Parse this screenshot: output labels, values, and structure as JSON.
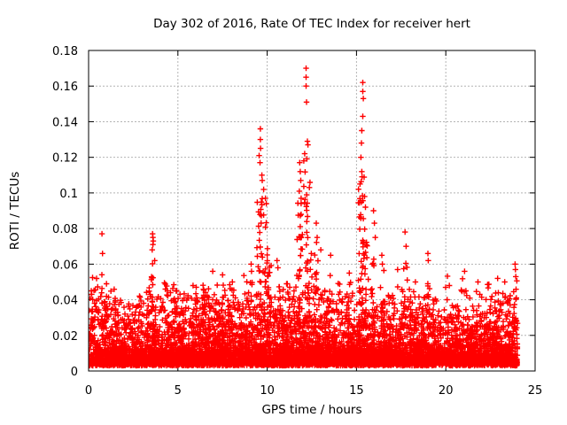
{
  "chart_data": {
    "type": "scatter",
    "title": "Day 302 of 2016, Rate Of TEC Index for receiver hert",
    "xlabel": "GPS time / hours",
    "ylabel": "ROTI / TECUs",
    "xlim": [
      0,
      25
    ],
    "ylim": [
      0,
      0.18
    ],
    "xticks": [
      {
        "v": 0,
        "label": "0"
      },
      {
        "v": 5,
        "label": "5"
      },
      {
        "v": 10,
        "label": "10"
      },
      {
        "v": 15,
        "label": "15"
      },
      {
        "v": 20,
        "label": "20"
      },
      {
        "v": 25,
        "label": "25"
      }
    ],
    "yticks": [
      {
        "v": 0,
        "label": "0"
      },
      {
        "v": 0.02,
        "label": "0.02"
      },
      {
        "v": 0.04,
        "label": "0.04"
      },
      {
        "v": 0.06,
        "label": "0.06"
      },
      {
        "v": 0.08,
        "label": "0.08"
      },
      {
        "v": 0.1,
        "label": "0.1"
      },
      {
        "v": 0.12,
        "label": "0.12"
      },
      {
        "v": 0.14,
        "label": "0.14"
      },
      {
        "v": 0.16,
        "label": "0.16"
      },
      {
        "v": 0.18,
        "label": "0.18"
      }
    ],
    "grid": true,
    "legend": "none",
    "marker": {
      "glyph": "plus",
      "color": "#ff0000"
    },
    "grid_color": "#b4b4b4",
    "border_color": "#000000",
    "background": "#ffffff",
    "data_time_range_hours": [
      0,
      24
    ],
    "scatter_model": {
      "seed": 20161028,
      "baseline": {
        "count": 6200,
        "y0": 0.003,
        "scale": 0.0072,
        "xmax": 24.02
      },
      "texture": {
        "bin": 0.25,
        "per_bin": 5,
        "base": 0.02,
        "range": 0.022,
        "exponent": 1.6
      },
      "clusters_format": [
        "x_hours",
        "x_stddev",
        "y_max",
        "n_points"
      ],
      "clusters": [
        [
          0.2,
          0.12,
          0.05,
          12
        ],
        [
          0.55,
          0.1,
          0.052,
          10
        ],
        [
          0.75,
          0.04,
          0.055,
          8
        ],
        [
          1.0,
          0.15,
          0.044,
          8
        ],
        [
          1.4,
          0.12,
          0.046,
          8
        ],
        [
          1.6,
          0.15,
          0.04,
          6
        ],
        [
          2.0,
          0.2,
          0.036,
          6
        ],
        [
          2.4,
          0.15,
          0.038,
          6
        ],
        [
          2.9,
          0.1,
          0.04,
          6
        ],
        [
          3.3,
          0.12,
          0.05,
          10
        ],
        [
          3.5,
          0.08,
          0.053,
          8
        ],
        [
          3.6,
          0.04,
          0.065,
          10
        ],
        [
          4.35,
          0.12,
          0.052,
          10
        ],
        [
          4.7,
          0.12,
          0.048,
          8
        ],
        [
          5.0,
          0.2,
          0.042,
          10
        ],
        [
          5.3,
          0.15,
          0.045,
          10
        ],
        [
          5.85,
          0.1,
          0.044,
          6
        ],
        [
          6.0,
          0.2,
          0.048,
          12
        ],
        [
          6.3,
          0.1,
          0.042,
          6
        ],
        [
          6.5,
          0.15,
          0.05,
          12
        ],
        [
          6.9,
          0.2,
          0.05,
          18
        ],
        [
          7.2,
          0.2,
          0.052,
          14
        ],
        [
          7.55,
          0.12,
          0.05,
          12
        ],
        [
          7.9,
          0.15,
          0.05,
          10
        ],
        [
          8.05,
          0.1,
          0.046,
          6
        ],
        [
          8.4,
          0.15,
          0.048,
          10
        ],
        [
          8.8,
          0.15,
          0.055,
          12
        ],
        [
          9.1,
          0.06,
          0.052,
          10
        ],
        [
          9.6,
          0.1,
          0.1,
          40
        ],
        [
          9.95,
          0.08,
          0.085,
          25
        ],
        [
          10.15,
          0.05,
          0.06,
          10
        ],
        [
          10.2,
          0.15,
          0.055,
          12
        ],
        [
          10.6,
          0.1,
          0.052,
          10
        ],
        [
          10.9,
          0.2,
          0.05,
          14
        ],
        [
          11.3,
          0.15,
          0.05,
          10
        ],
        [
          11.6,
          0.1,
          0.055,
          10
        ],
        [
          11.85,
          0.08,
          0.095,
          30
        ],
        [
          12.2,
          0.08,
          0.12,
          35
        ],
        [
          12.45,
          0.05,
          0.07,
          12
        ],
        [
          12.75,
          0.06,
          0.075,
          14
        ],
        [
          13.0,
          0.2,
          0.05,
          12
        ],
        [
          13.5,
          0.1,
          0.055,
          12
        ],
        [
          14.0,
          0.2,
          0.045,
          10
        ],
        [
          14.6,
          0.15,
          0.05,
          12
        ],
        [
          15.3,
          0.1,
          0.11,
          45
        ],
        [
          15.55,
          0.06,
          0.085,
          20
        ],
        [
          15.95,
          0.06,
          0.07,
          15
        ],
        [
          16.45,
          0.05,
          0.058,
          10
        ],
        [
          16.8,
          0.2,
          0.045,
          10
        ],
        [
          17.5,
          0.15,
          0.05,
          10
        ],
        [
          17.75,
          0.06,
          0.062,
          12
        ],
        [
          18.0,
          0.15,
          0.048,
          8
        ],
        [
          18.3,
          0.12,
          0.046,
          8
        ],
        [
          18.7,
          0.15,
          0.045,
          8
        ],
        [
          19.0,
          0.05,
          0.056,
          10
        ],
        [
          19.3,
          0.15,
          0.048,
          8
        ],
        [
          20.3,
          0.12,
          0.044,
          8
        ],
        [
          21.0,
          0.15,
          0.046,
          10
        ],
        [
          21.8,
          0.12,
          0.046,
          8
        ],
        [
          22.4,
          0.1,
          0.05,
          10
        ],
        [
          22.9,
          0.15,
          0.046,
          10
        ],
        [
          23.3,
          0.1,
          0.046,
          6
        ],
        [
          23.6,
          0.15,
          0.048,
          8
        ],
        [
          23.9,
          0.07,
          0.052,
          12
        ]
      ],
      "outliers": [
        [
          0.15,
          0.045
        ],
        [
          0.75,
          0.077
        ],
        [
          0.78,
          0.066
        ],
        [
          1.0,
          0.049
        ],
        [
          2.85,
          0.042
        ],
        [
          3.56,
          0.068
        ],
        [
          3.58,
          0.077
        ],
        [
          3.6,
          0.075
        ],
        [
          3.6,
          0.071
        ],
        [
          3.62,
          0.073
        ],
        [
          3.7,
          0.062
        ],
        [
          4.3,
          0.046
        ],
        [
          5.85,
          0.048
        ],
        [
          6.95,
          0.056
        ],
        [
          7.5,
          0.054
        ],
        [
          8.05,
          0.05
        ],
        [
          9.1,
          0.06
        ],
        [
          9.12,
          0.056
        ],
        [
          9.55,
          0.121
        ],
        [
          9.6,
          0.117
        ],
        [
          9.62,
          0.136
        ],
        [
          9.62,
          0.13
        ],
        [
          9.63,
          0.125
        ],
        [
          9.7,
          0.11
        ],
        [
          9.72,
          0.107
        ],
        [
          9.8,
          0.102
        ],
        [
          9.9,
          0.097
        ],
        [
          9.95,
          0.094
        ],
        [
          10.55,
          0.062
        ],
        [
          10.6,
          0.058
        ],
        [
          11.8,
          0.101
        ],
        [
          11.82,
          0.117
        ],
        [
          11.85,
          0.112
        ],
        [
          11.88,
          0.107
        ],
        [
          11.9,
          0.097
        ],
        [
          12.05,
          0.118
        ],
        [
          12.1,
          0.122
        ],
        [
          12.18,
          0.17
        ],
        [
          12.18,
          0.165
        ],
        [
          12.18,
          0.16
        ],
        [
          12.2,
          0.151
        ],
        [
          12.25,
          0.129
        ],
        [
          12.28,
          0.127
        ],
        [
          12.75,
          0.083
        ],
        [
          12.8,
          0.075
        ],
        [
          13.0,
          0.068
        ],
        [
          13.55,
          0.065
        ],
        [
          14.6,
          0.055
        ],
        [
          15.2,
          0.105
        ],
        [
          15.25,
          0.12
        ],
        [
          15.28,
          0.128
        ],
        [
          15.3,
          0.135
        ],
        [
          15.3,
          0.112
        ],
        [
          15.35,
          0.162
        ],
        [
          15.35,
          0.157
        ],
        [
          15.35,
          0.143
        ],
        [
          15.38,
          0.153
        ],
        [
          15.45,
          0.098
        ],
        [
          15.5,
          0.092
        ],
        [
          15.95,
          0.09
        ],
        [
          16.0,
          0.083
        ],
        [
          16.05,
          0.075
        ],
        [
          16.42,
          0.065
        ],
        [
          16.45,
          0.06
        ],
        [
          17.3,
          0.057
        ],
        [
          17.72,
          0.078
        ],
        [
          17.78,
          0.07
        ],
        [
          18.3,
          0.05
        ],
        [
          19.0,
          0.066
        ],
        [
          19.02,
          0.062
        ],
        [
          20.2,
          0.048
        ],
        [
          21.05,
          0.056
        ],
        [
          21.8,
          0.05
        ],
        [
          22.9,
          0.052
        ],
        [
          23.3,
          0.05
        ],
        [
          23.88,
          0.06
        ],
        [
          23.9,
          0.057
        ],
        [
          23.92,
          0.053
        ]
      ]
    }
  }
}
